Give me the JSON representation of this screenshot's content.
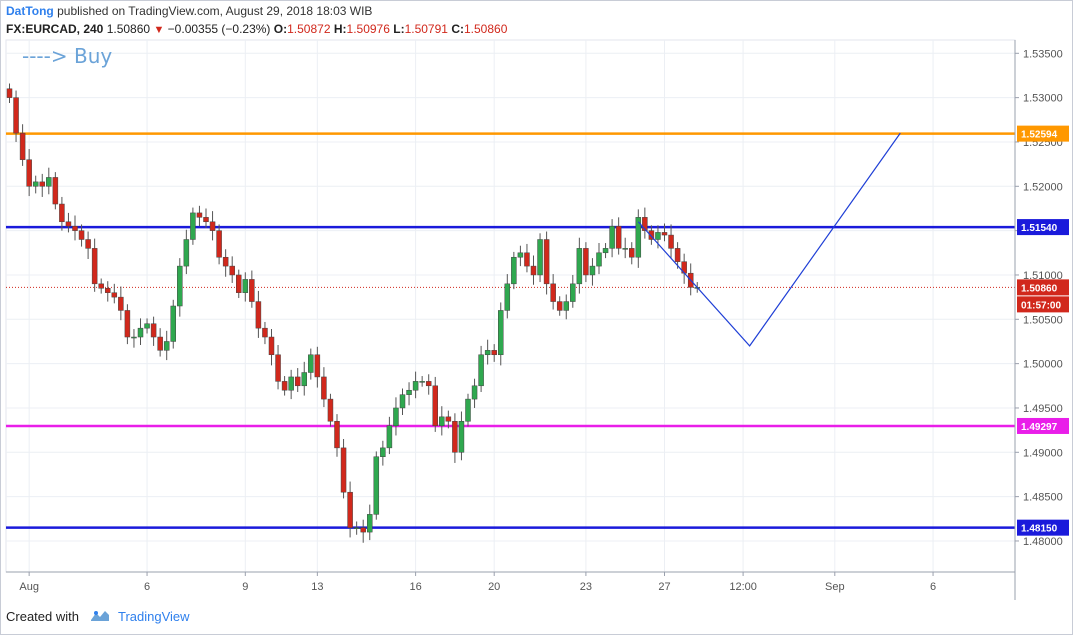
{
  "header": {
    "author": "DatTong",
    "published": "published on TradingView.com, August 29, 2018 18:03 WIB"
  },
  "ticker": {
    "symbol": "FX:EURCAD, 240",
    "last": "1.50860",
    "change": "−0.00355 (−0.23%)",
    "o_label": "O:",
    "o": "1.50872",
    "h_label": "H:",
    "h": "1.50976",
    "l_label": "L:",
    "l": "1.50791",
    "c_label": "C:",
    "c": "1.50860"
  },
  "annotation": "----> Buy",
  "footer": {
    "created_with": "Created with",
    "brand": "TradingView"
  },
  "colors": {
    "up": "#2fa84f",
    "down": "#d1281c",
    "resistance_orange": "#ff9800",
    "level_blue": "#1a1adb",
    "level_magenta": "#e91ee9",
    "projection": "#1f3fd6",
    "price_line": "#d1281c"
  },
  "chart_data": {
    "type": "candlestick",
    "ylim": [
      1.4765,
      1.5365
    ],
    "y_ticks": [
      "1.53500",
      "1.53000",
      "1.52500",
      "1.52000",
      "1.51500",
      "1.51000",
      "1.50500",
      "1.50000",
      "1.49500",
      "1.49000",
      "1.48500",
      "1.48000"
    ],
    "x_ticks": [
      "Aug",
      "6",
      "9",
      "13",
      "16",
      "20",
      "23",
      "27",
      "12:00",
      "Sep",
      "6"
    ],
    "levels": [
      {
        "label": "1.52594",
        "value": 1.52594,
        "color": "#ff9800"
      },
      {
        "label": "1.51540",
        "value": 1.5154,
        "color": "#1a1adb"
      },
      {
        "label": "1.49297",
        "value": 1.49297,
        "color": "#e91ee9"
      },
      {
        "label": "1.48150",
        "value": 1.4815,
        "color": "#1a1adb"
      }
    ],
    "current_price": {
      "label": "1.50860",
      "value": 1.5086,
      "countdown": "01:57:00"
    },
    "projection": [
      {
        "bar": 96,
        "price": 1.516
      },
      {
        "bar": 113,
        "price": 1.502
      },
      {
        "bar": 136,
        "price": 1.526
      }
    ],
    "closes": [
      1.53,
      1.526,
      1.523,
      1.52,
      1.5205,
      1.52,
      1.521,
      1.518,
      1.516,
      1.5155,
      1.515,
      1.514,
      1.513,
      1.509,
      1.5085,
      1.508,
      1.5075,
      1.506,
      1.503,
      1.503,
      1.504,
      1.5045,
      1.503,
      1.5015,
      1.5025,
      1.5065,
      1.511,
      1.514,
      1.517,
      1.5165,
      1.516,
      1.515,
      1.512,
      1.511,
      1.51,
      1.508,
      1.5095,
      1.507,
      1.504,
      1.503,
      1.501,
      1.498,
      1.497,
      1.4985,
      1.4975,
      1.499,
      1.501,
      1.4985,
      1.496,
      1.4935,
      1.4905,
      1.4855,
      1.4815,
      1.4815,
      1.481,
      1.483,
      1.4895,
      1.4905,
      1.493,
      1.495,
      1.4965,
      1.497,
      1.498,
      1.498,
      1.4975,
      1.493,
      1.494,
      1.4935,
      1.49,
      1.4935,
      1.496,
      1.4975,
      1.501,
      1.5015,
      1.501,
      1.506,
      1.509,
      1.512,
      1.5125,
      1.511,
      1.51,
      1.514,
      1.509,
      1.507,
      1.506,
      1.507,
      1.509,
      1.513,
      1.51,
      1.511,
      1.5125,
      1.513,
      1.5155,
      1.513,
      1.513,
      1.512,
      1.5165,
      1.515,
      1.514,
      1.5148,
      1.5145,
      1.513,
      1.5115,
      1.5102,
      1.5086,
      1.5086
    ],
    "x_tick_bars": [
      3,
      21,
      36,
      47,
      62,
      74,
      88,
      100,
      112,
      126,
      141
    ]
  }
}
